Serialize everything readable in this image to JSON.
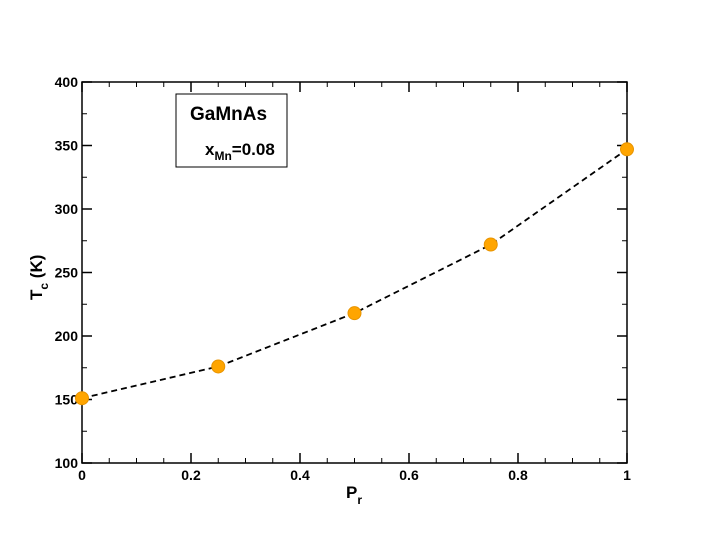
{
  "chart_data": {
    "type": "scatter",
    "x": [
      0,
      0.25,
      0.5,
      0.75,
      1
    ],
    "y": [
      151,
      176,
      218,
      272,
      347
    ],
    "xlim": [
      0,
      1
    ],
    "ylim": [
      100,
      400
    ],
    "xticks": [
      0,
      0.2,
      0.4,
      0.6,
      0.8,
      1
    ],
    "xtick_labels": [
      "0",
      "0.2",
      "0.4",
      "0.6",
      "0.8",
      "1"
    ],
    "yticks": [
      100,
      150,
      200,
      250,
      300,
      350,
      400
    ],
    "ytick_labels": [
      "100",
      "150",
      "200",
      "250",
      "300",
      "350",
      "400"
    ],
    "xlabel": {
      "main": "P",
      "sub": "r"
    },
    "ylabel": {
      "main": "T",
      "sub": "c",
      "rest": " (K)"
    },
    "legend": {
      "title": "GaMnAs",
      "line_main": "x",
      "line_sub": "Mn",
      "line_rest": "=0.08",
      "placement": "top-left"
    },
    "grid": false,
    "marker_color": "#ffa500",
    "line_color": "#000000",
    "line_style": "dashed"
  }
}
